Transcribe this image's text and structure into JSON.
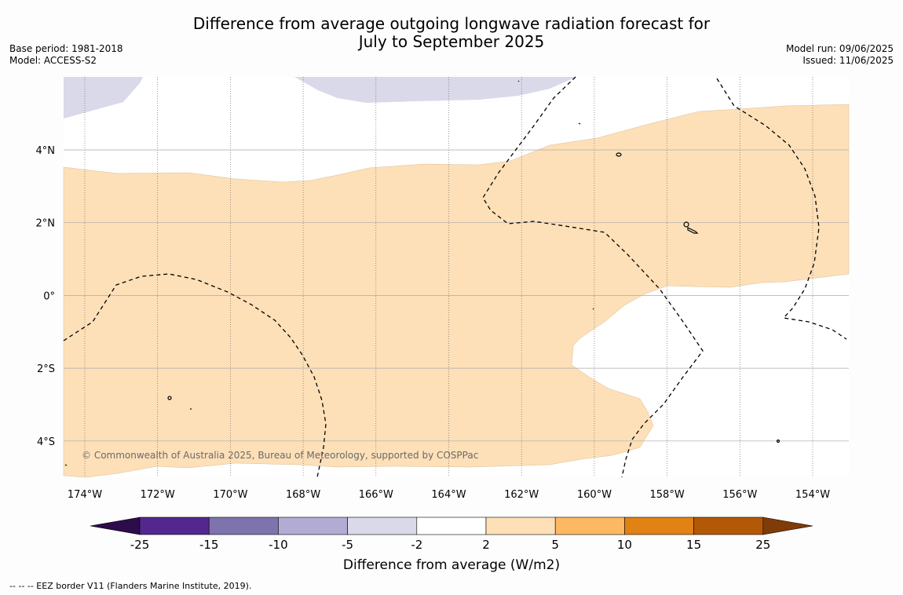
{
  "title_line1": "Difference from average outgoing longwave radiation forecast for",
  "title_line2": "July to September 2025",
  "meta_left": [
    "Base period: 1981-2018",
    "Model: ACCESS-S2"
  ],
  "meta_right": [
    "Model run: 09/06/2025",
    "Issued: 11/06/2025"
  ],
  "copyright": "© Commonwealth of Australia 2025, Bureau of Meteorology, supported by COSPPac",
  "colorbar": {
    "label": "Difference from average (W/m2)",
    "ticks": [
      "-25",
      "-15",
      "-10",
      "-5",
      "-2",
      "2",
      "5",
      "10",
      "15",
      "25"
    ],
    "colors": [
      "#2d0c4b",
      "#54278f",
      "#7e73ad",
      "#b2acd4",
      "#d9d9ea",
      "#ffffff",
      "#fde0b8",
      "#fdb863",
      "#e08214",
      "#b35806",
      "#7f3b08"
    ]
  },
  "footnote": "-- -- -- EEZ border V11 (Flanders Marine Institute, 2019).",
  "map": {
    "lon_labels": [
      "174°W",
      "172°W",
      "170°W",
      "168°W",
      "166°W",
      "164°W",
      "162°W",
      "160°W",
      "158°W",
      "156°W",
      "154°W"
    ],
    "lat_labels": [
      "4°N",
      "2°N",
      "0°",
      "2°S",
      "4°S"
    ],
    "lon_range": [
      -174.6,
      -152.9
    ],
    "lat_range": [
      -5.2,
      5.8
    ],
    "legend_categories": [
      "2 to 5"
    ]
  }
}
